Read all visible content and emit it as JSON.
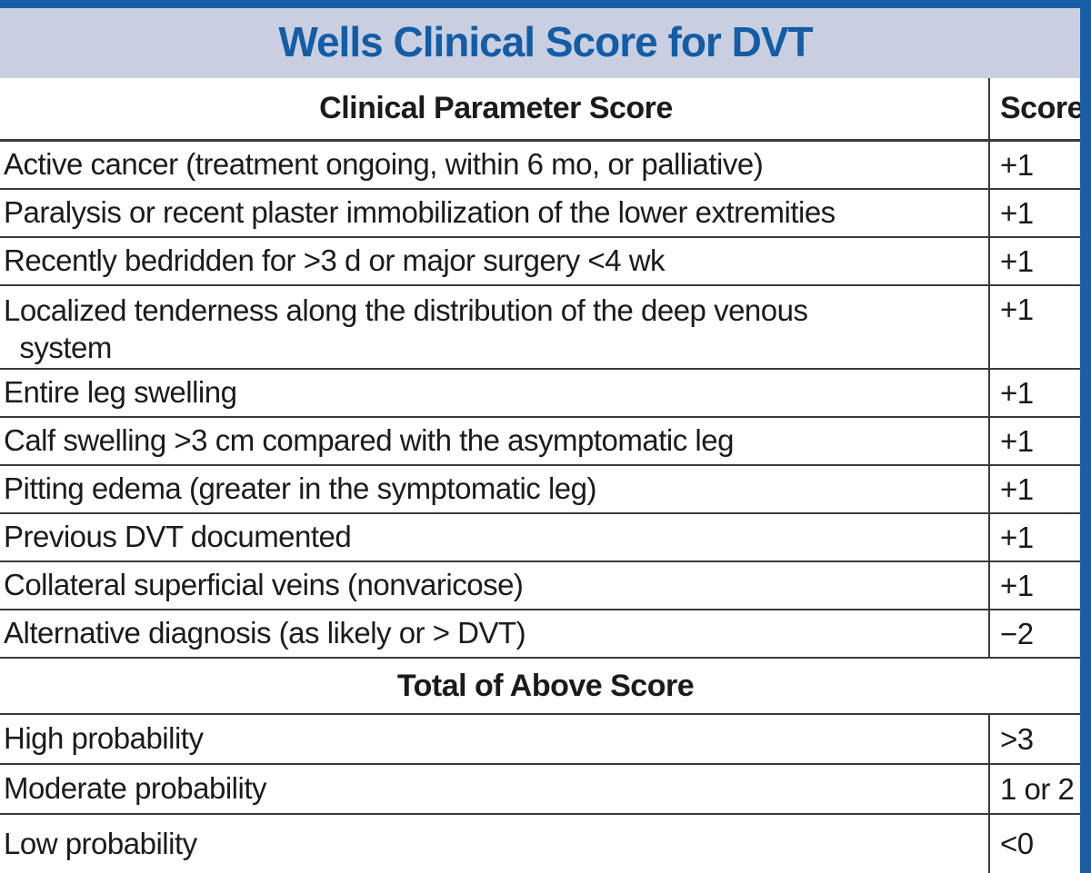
{
  "title": "Wells Clinical Score for DVT",
  "table": {
    "header": {
      "parameter": "Clinical Parameter Score",
      "score": "Score"
    },
    "rows": [
      {
        "parameter": "Active cancer (treatment ongoing, within 6 mo, or palliative)",
        "score": "+1"
      },
      {
        "parameter": "Paralysis or recent plaster immobilization of the lower extremities",
        "score": "+1"
      },
      {
        "parameter": "Recently bedridden for >3 d or major surgery <4 wk",
        "score": "+1"
      },
      {
        "parameter": "Localized tenderness along the distribution of the deep venous\n  system",
        "score": "+1"
      },
      {
        "parameter": "Entire leg swelling",
        "score": "+1"
      },
      {
        "parameter": "Calf swelling >3 cm compared with the asymptomatic leg",
        "score": "+1"
      },
      {
        "parameter": "Pitting edema (greater in the symptomatic leg)",
        "score": "+1"
      },
      {
        "parameter": "Previous DVT documented",
        "score": "+1"
      },
      {
        "parameter": "Collateral superficial veins (nonvaricose)",
        "score": "+1"
      },
      {
        "parameter": "Alternative diagnosis (as likely or > DVT)",
        "score": "−2"
      }
    ],
    "total_section_label": "Total of Above Score",
    "probability_rows": [
      {
        "label": "High probability",
        "score": ">3"
      },
      {
        "label": "Moderate probability",
        "score": "1 or 2"
      },
      {
        "label": "Low probability",
        "score": "<0"
      }
    ]
  },
  "colors": {
    "accent_blue": "#1a5ea7",
    "banner_bg": "#c9cfe0",
    "title_text": "#135ca6",
    "border_gray": "#3a3a3a",
    "text": "#1b1b1b"
  }
}
